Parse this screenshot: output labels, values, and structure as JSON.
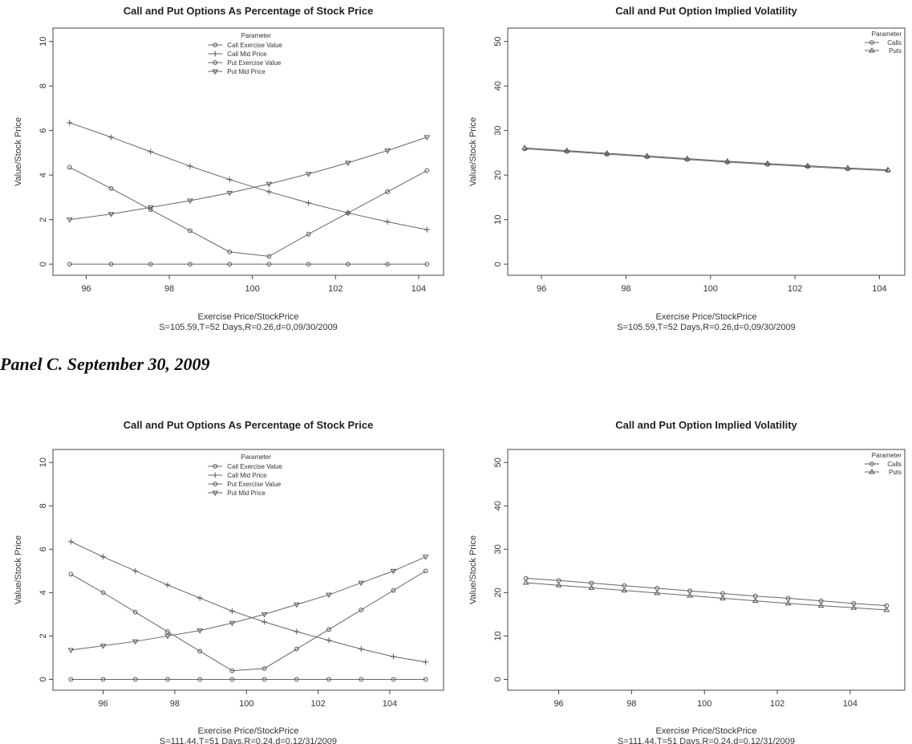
{
  "panel_label": "Panel C. September 30, 2009",
  "chart_data": [
    {
      "type": "line",
      "title": "Call and Put Options As Percentage of Stock Price",
      "xlabel": "Exercise Price/StockPrice",
      "subtitle": "S=105.59,T=52 Days,R=0.26,d=0,09/30/2009",
      "ylabel": "Value/Stock Price",
      "xlim": [
        95.2,
        104.6
      ],
      "ylim": [
        -0.5,
        10.6
      ],
      "xticks": [
        96,
        98,
        100,
        102,
        104
      ],
      "yticks": [
        0,
        2,
        4,
        6,
        8,
        10
      ],
      "legend": {
        "title": "Parameter",
        "position": "top-center",
        "entries": [
          "Call Exercise Value",
          "Call Mid Price",
          "Put Exercise Value",
          "Put Mid Price"
        ]
      },
      "x": [
        95.6,
        96.6,
        97.55,
        98.5,
        99.45,
        100.4,
        101.35,
        102.3,
        103.25,
        104.2
      ],
      "series": [
        {
          "name": "Call Exercise Value",
          "marker": "circle",
          "values": [
            0,
            0,
            0,
            0,
            0,
            0,
            0,
            0,
            0,
            0
          ]
        },
        {
          "name": "Call Mid Price",
          "marker": "plus",
          "values": [
            6.35,
            5.7,
            5.05,
            4.4,
            3.8,
            3.25,
            2.75,
            2.3,
            1.9,
            1.55
          ]
        },
        {
          "name": "Put Exercise Value",
          "marker": "circle",
          "values": [
            4.35,
            3.4,
            2.45,
            1.5,
            0.55,
            0.35,
            1.35,
            2.3,
            3.25,
            4.2
          ]
        },
        {
          "name": "Put Mid Price",
          "marker": "triangle-down",
          "values": [
            2.0,
            2.25,
            2.55,
            2.85,
            3.2,
            3.6,
            4.05,
            4.55,
            5.1,
            5.7
          ]
        }
      ]
    },
    {
      "type": "line",
      "title": "Call and Put Option Implied Volatility",
      "xlabel": "Exercise Price/StockPrice",
      "subtitle": "S=105.59,T=52 Days,R=0.26,d=0,09/30/2009",
      "ylabel": "Value/Stock Price",
      "xlim": [
        95.2,
        104.6
      ],
      "ylim": [
        -2.5,
        53
      ],
      "xticks": [
        96,
        98,
        100,
        102,
        104
      ],
      "yticks": [
        0,
        10,
        20,
        30,
        40,
        50
      ],
      "legend": {
        "title": "Parameter",
        "position": "top-right",
        "entries": [
          "Calls",
          "Puts"
        ]
      },
      "x": [
        95.6,
        96.6,
        97.55,
        98.5,
        99.45,
        100.4,
        101.35,
        102.3,
        103.25,
        104.2
      ],
      "series": [
        {
          "name": "Calls",
          "marker": "circle",
          "values": [
            25.9,
            25.3,
            24.7,
            24.1,
            23.5,
            22.9,
            22.4,
            21.9,
            21.4,
            21.0
          ]
        },
        {
          "name": "Puts",
          "marker": "triangle-up",
          "values": [
            26.1,
            25.5,
            24.9,
            24.3,
            23.7,
            23.1,
            22.6,
            22.1,
            21.6,
            21.2
          ]
        }
      ]
    },
    {
      "type": "line",
      "title": "Call and Put Options As Percentage of Stock Price",
      "xlabel": "Exercise Price/StockPrice",
      "subtitle": "S=111.44,T=51 Days,R=0.24,d=0,12/31/2009",
      "ylabel": "Value/Stock Price",
      "xlim": [
        94.6,
        105.5
      ],
      "ylim": [
        -0.5,
        10.6
      ],
      "xticks": [
        96,
        98,
        100,
        102,
        104
      ],
      "yticks": [
        0,
        2,
        4,
        6,
        8,
        10
      ],
      "legend": {
        "title": "Parameter",
        "position": "top-center",
        "entries": [
          "Call Exercise Value",
          "Call Mid Price",
          "Put Exercise Value",
          "Put Mid Price"
        ]
      },
      "x": [
        95.1,
        96.0,
        96.9,
        97.8,
        98.7,
        99.6,
        100.5,
        101.4,
        102.3,
        103.2,
        104.1,
        105.0
      ],
      "series": [
        {
          "name": "Call Exercise Value",
          "marker": "circle",
          "values": [
            0,
            0,
            0,
            0,
            0,
            0,
            0,
            0,
            0,
            0,
            0,
            0
          ]
        },
        {
          "name": "Call Mid Price",
          "marker": "plus",
          "values": [
            6.35,
            5.65,
            5.0,
            4.35,
            3.75,
            3.15,
            2.65,
            2.2,
            1.8,
            1.4,
            1.05,
            0.8
          ]
        },
        {
          "name": "Put Exercise Value",
          "marker": "circle",
          "values": [
            4.85,
            4.0,
            3.1,
            2.2,
            1.3,
            0.4,
            0.5,
            1.4,
            2.3,
            3.2,
            4.1,
            5.0
          ]
        },
        {
          "name": "Put Mid Price",
          "marker": "triangle-down",
          "values": [
            1.35,
            1.55,
            1.75,
            2.0,
            2.25,
            2.6,
            3.0,
            3.45,
            3.9,
            4.45,
            5.0,
            5.65
          ]
        }
      ]
    },
    {
      "type": "line",
      "title": "Call and Put Option Implied Volatility",
      "xlabel": "Exercise Price/StockPrice",
      "subtitle": "S=111.44,T=51 Days,R=0.24,d=0,12/31/2009",
      "ylabel": "Value/Stock Price",
      "xlim": [
        94.6,
        105.5
      ],
      "ylim": [
        -2.5,
        53
      ],
      "xticks": [
        96,
        98,
        100,
        102,
        104
      ],
      "yticks": [
        0,
        10,
        20,
        30,
        40,
        50
      ],
      "legend": {
        "title": "Parameter",
        "position": "top-right",
        "entries": [
          "Calls",
          "Puts"
        ]
      },
      "x": [
        95.1,
        96.0,
        96.9,
        97.8,
        98.7,
        99.6,
        100.5,
        101.4,
        102.3,
        103.2,
        104.1,
        105.0
      ],
      "series": [
        {
          "name": "Calls",
          "marker": "circle",
          "values": [
            23.3,
            22.8,
            22.2,
            21.6,
            21.0,
            20.4,
            19.8,
            19.2,
            18.7,
            18.1,
            17.5,
            17.0
          ]
        },
        {
          "name": "Puts",
          "marker": "triangle-up",
          "values": [
            22.3,
            21.7,
            21.1,
            20.5,
            19.9,
            19.3,
            18.7,
            18.1,
            17.5,
            17.0,
            16.5,
            16.0
          ]
        }
      ]
    }
  ]
}
